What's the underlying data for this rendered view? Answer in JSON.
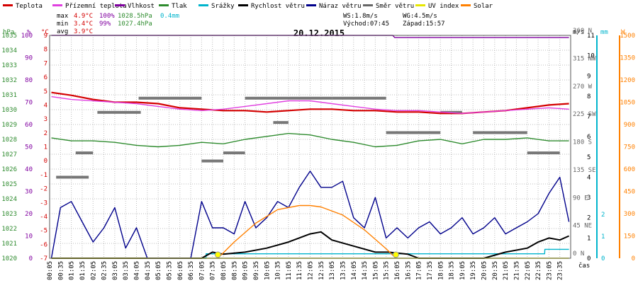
{
  "legend": [
    {
      "label": "Teplota",
      "color": "#d40000"
    },
    {
      "label": "Přízemní teplota",
      "color": "#e040e0"
    },
    {
      "label": "Vlhkost",
      "color": "#8000a0"
    },
    {
      "label": "Tlak",
      "color": "#2e8b2e"
    },
    {
      "label": "Srážky",
      "color": "#00b4cc"
    },
    {
      "label": "Rychlost větru",
      "color": "#000000"
    },
    {
      "label": "Náraz větru",
      "color": "#00008b"
    },
    {
      "label": "Směr větru",
      "color": "#666666"
    },
    {
      "label": "UV index",
      "color": "#e6e600"
    },
    {
      "label": "Solar",
      "color": "#ff8000"
    }
  ],
  "stats": {
    "max_label": "max",
    "min_label": "min",
    "avg_label": "avg",
    "max_temp": "4.9°C",
    "max_hum": "100%",
    "max_press": "1028.5hPa",
    "max_rain": "0.4mm",
    "min_temp": "3.4°C",
    "min_hum": "99%",
    "min_press": "1027.4hPa",
    "avg_temp": "3.9°C",
    "ws": "WS:1.8m/s",
    "wg": "WG:4.5m/s",
    "sunrise": "Východ:07:45",
    "sunset": "Západ:15:57"
  },
  "title": "20.12.2015",
  "axis_units": {
    "hpa": "hPa",
    "pct": "%",
    "degc": "°C",
    "ms": "m/s",
    "mm": "mm",
    "w": "W",
    "time": "čas"
  },
  "chart_data": {
    "type": "line",
    "title": "20.12.2015",
    "x_ticks": [
      "00:05",
      "00:35",
      "01:05",
      "01:35",
      "02:05",
      "02:35",
      "03:05",
      "03:35",
      "04:05",
      "04:35",
      "05:05",
      "05:35",
      "06:05",
      "06:35",
      "07:05",
      "07:35",
      "08:05",
      "08:35",
      "09:05",
      "09:35",
      "10:05",
      "10:35",
      "11:05",
      "11:35",
      "12:05",
      "12:35",
      "13:05",
      "13:35",
      "14:05",
      "14:35",
      "15:05",
      "15:35",
      "16:05",
      "16:35",
      "17:05",
      "17:35",
      "18:05",
      "18:35",
      "19:05",
      "19:35",
      "20:05",
      "20:35",
      "21:05",
      "21:35",
      "22:05",
      "22:35",
      "23:05",
      "23:35"
    ],
    "axes": {
      "pressure_hpa": {
        "ylim": [
          1020,
          1035
        ],
        "ticks": [
          "1020",
          "1021",
          "1022",
          "1023",
          "1024",
          "1025",
          "1026",
          "1027",
          "1028",
          "1029",
          "1030",
          "1031",
          "1032",
          "1033",
          "1034",
          "1035"
        ]
      },
      "humidity_pct": {
        "ylim": [
          0,
          100
        ],
        "ticks": [
          "0",
          "10",
          "20",
          "30",
          "40",
          "50",
          "60",
          "70",
          "80",
          "90",
          "100"
        ]
      },
      "temperature_c": {
        "ylim": [
          -7,
          9
        ],
        "ticks": [
          "-7",
          "-6",
          "-5",
          "-4",
          "-3",
          "-2",
          "-1",
          "0",
          "1",
          "2",
          "3",
          "4",
          "5",
          "6",
          "7",
          "8",
          "9"
        ]
      },
      "wind_dir": {
        "ticks": [
          "0 N",
          "45 NE",
          "90 E",
          "135 SE",
          "180 S",
          "225 SW",
          "270 W",
          "315 NW",
          "360 N"
        ]
      },
      "wind_ms": {
        "ylim": [
          0,
          11
        ],
        "ticks": [
          "0",
          "1",
          "2",
          "3",
          "4",
          "5",
          "6",
          "7",
          "8",
          "9",
          "10",
          "11"
        ]
      },
      "rain_mm": {
        "ticks": [
          "0",
          "1",
          "2"
        ]
      },
      "solar_w": {
        "ylim": [
          0,
          1650
        ],
        "ticks": [
          "0",
          "150",
          "300",
          "450",
          "600",
          "750",
          "900",
          "1050",
          "1200",
          "1350",
          "1500"
        ]
      }
    },
    "series": [
      {
        "name": "Teplota",
        "color": "#d40000",
        "axis": "temperature_c",
        "x": [
          0.08,
          1,
          2,
          3,
          4,
          5,
          6,
          7,
          8,
          9,
          10,
          11,
          12,
          13,
          14,
          15,
          16,
          17,
          18,
          19,
          20,
          21,
          22,
          23,
          23.92
        ],
        "values": [
          4.9,
          4.7,
          4.4,
          4.2,
          4.2,
          4.1,
          3.8,
          3.7,
          3.6,
          3.6,
          3.5,
          3.6,
          3.7,
          3.7,
          3.6,
          3.6,
          3.5,
          3.5,
          3.4,
          3.4,
          3.5,
          3.6,
          3.8,
          4.0,
          4.1
        ]
      },
      {
        "name": "Přízemní teplota",
        "color": "#e040e0",
        "axis": "temperature_c",
        "x": [
          0.08,
          1,
          2,
          3,
          4,
          5,
          6,
          7,
          8,
          9,
          10,
          11,
          12,
          13,
          14,
          15,
          16,
          17,
          18,
          19,
          20,
          21,
          22,
          23,
          23.92
        ],
        "values": [
          4.6,
          4.4,
          4.3,
          4.2,
          4.1,
          3.9,
          3.7,
          3.6,
          3.7,
          3.9,
          4.1,
          4.3,
          4.3,
          4.1,
          3.9,
          3.7,
          3.6,
          3.6,
          3.5,
          3.4,
          3.5,
          3.6,
          3.7,
          3.8,
          3.7
        ]
      },
      {
        "name": "Vlhkost",
        "color": "#8000a0",
        "axis": "humidity_pct",
        "x": [
          0.08,
          15.8,
          15.9,
          23.92
        ],
        "values": [
          100,
          100,
          99,
          99
        ]
      },
      {
        "name": "Tlak",
        "color": "#2e8b2e",
        "axis": "pressure_hpa",
        "x": [
          0.08,
          1,
          2,
          3,
          4,
          5,
          6,
          7,
          8,
          9,
          10,
          11,
          12,
          13,
          14,
          15,
          16,
          17,
          18,
          19,
          20,
          21,
          22,
          23,
          23.92
        ],
        "values": [
          1028.1,
          1027.9,
          1027.9,
          1027.8,
          1027.6,
          1027.5,
          1027.6,
          1027.8,
          1027.7,
          1028.0,
          1028.2,
          1028.4,
          1028.3,
          1028.0,
          1027.8,
          1027.5,
          1027.6,
          1027.9,
          1028.0,
          1027.7,
          1028.0,
          1028.0,
          1028.1,
          1027.9,
          1027.9
        ]
      },
      {
        "name": "Srážky",
        "color": "#00b4cc",
        "axis": "rain_mm",
        "x": [
          0.08,
          7.2,
          7.21,
          22.8,
          22.81,
          23.92
        ],
        "values": [
          0,
          0,
          0.2,
          0.2,
          0.4,
          0.4
        ]
      },
      {
        "name": "Rychlost větru",
        "color": "#000000",
        "axis": "wind_ms",
        "x": [
          0.08,
          7.0,
          7.5,
          8.0,
          9.0,
          10.0,
          11.0,
          12.0,
          12.5,
          13.0,
          14.0,
          15.0,
          15.6,
          16.5,
          17.0,
          18.0,
          19.0,
          20.0,
          21.0,
          22.0,
          22.5,
          23.0,
          23.5,
          23.92
        ],
        "values": [
          0,
          0,
          0.3,
          0.2,
          0.3,
          0.5,
          0.8,
          1.2,
          1.3,
          0.9,
          0.6,
          0.3,
          0.3,
          0.2,
          0,
          0,
          0,
          0,
          0.3,
          0.5,
          0.8,
          1.0,
          0.9,
          1.1
        ]
      },
      {
        "name": "Náraz větru",
        "color": "#00008b",
        "axis": "wind_ms",
        "x": [
          0.08,
          0.5,
          1.0,
          1.5,
          2.0,
          2.5,
          3.0,
          3.5,
          4.0,
          4.5,
          5.0,
          5.5,
          6.0,
          6.5,
          7.0,
          7.5,
          8.0,
          8.5,
          9.0,
          9.5,
          10.0,
          10.5,
          11.0,
          11.5,
          12.0,
          12.5,
          13.0,
          13.5,
          14.0,
          14.5,
          15.0,
          15.5,
          16.0,
          16.5,
          17.0,
          17.5,
          18.0,
          18.5,
          19.0,
          19.5,
          20.0,
          20.5,
          21.0,
          21.5,
          22.0,
          22.5,
          23.0,
          23.5,
          23.92
        ],
        "values": [
          0,
          2.5,
          2.8,
          1.8,
          0.8,
          1.5,
          2.5,
          0.5,
          1.5,
          0,
          0,
          0,
          0,
          0,
          2.8,
          1.5,
          1.5,
          1.2,
          2.8,
          1.5,
          2.0,
          2.8,
          2.5,
          3.5,
          4.3,
          3.5,
          3.5,
          3.8,
          2.0,
          1.5,
          3.0,
          1.0,
          1.5,
          1.0,
          1.5,
          1.8,
          1.2,
          1.5,
          2.0,
          1.2,
          1.5,
          2.0,
          1.2,
          1.5,
          1.8,
          2.2,
          3.2,
          4.0,
          1.8
        ]
      },
      {
        "name": "Solar",
        "color": "#ff8000",
        "axis": "solar_w",
        "x": [
          7.75,
          8.5,
          9.5,
          10.5,
          11.5,
          12.0,
          12.5,
          13.5,
          14.5,
          15.5,
          15.95
        ],
        "values": [
          0,
          120,
          260,
          360,
          390,
          390,
          380,
          320,
          210,
          70,
          0
        ]
      },
      {
        "name": "UV index",
        "color": "#e6e600",
        "axis": "solar_w",
        "x": [
          0.08,
          23.92
        ],
        "values": [
          0,
          0
        ]
      }
    ]
  }
}
